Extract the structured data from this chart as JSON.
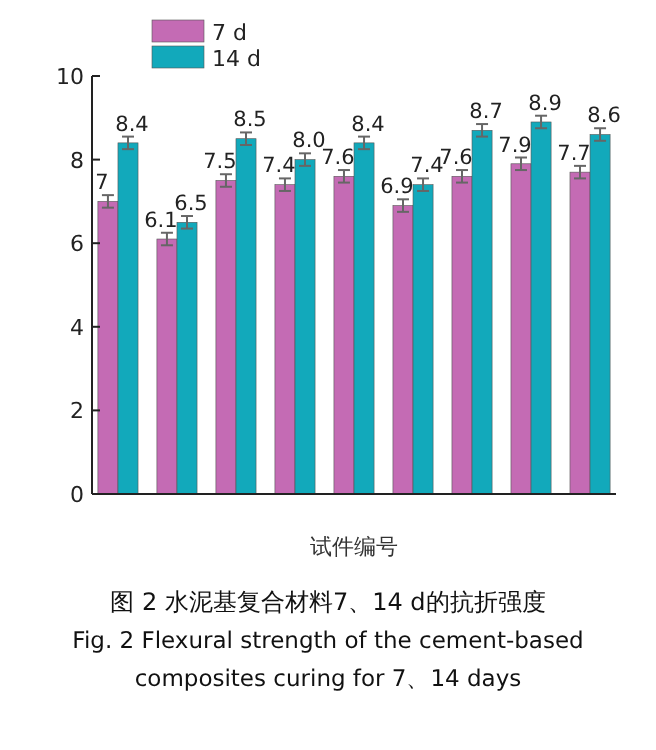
{
  "chart_data": {
    "type": "bar",
    "categories": [
      null,
      null,
      null,
      null,
      null,
      null,
      null,
      null,
      null
    ],
    "series": [
      {
        "name": "7 d",
        "color": "#c46bb4",
        "values": [
          7,
          6.1,
          7.5,
          7.4,
          7.6,
          6.9,
          7.6,
          7.9,
          7.7
        ],
        "value_labels": [
          "7",
          "6.1",
          "7.5",
          "7.4",
          "7.6",
          "6.9",
          "7.6",
          "7.9",
          "7.7"
        ],
        "errors": [
          0.15,
          0.15,
          0.15,
          0.15,
          0.15,
          0.15,
          0.15,
          0.15,
          0.15
        ]
      },
      {
        "name": "14 d",
        "color": "#12a9bb",
        "values": [
          8.4,
          6.5,
          8.5,
          8.0,
          8.4,
          7.4,
          8.7,
          8.9,
          8.6
        ],
        "value_labels": [
          "8.4",
          "6.5",
          "8.5",
          "8.0",
          "8.4",
          "7.4",
          "8.7",
          "8.9",
          "8.6"
        ],
        "errors": [
          0.15,
          0.15,
          0.15,
          0.15,
          0.15,
          0.15,
          0.15,
          0.15,
          0.15
        ]
      }
    ],
    "xlabel": "试件编号",
    "ylim": [
      0,
      10
    ],
    "yticks": [
      0,
      2,
      4,
      6,
      8,
      10
    ],
    "legend": "top left",
    "grid": false,
    "annotations": [
      "图 2 水泥基复合材料7、14 d的抗折强度",
      "Fig. 2 Flexural strength of the cement-based",
      "composites curing for 7、14 days"
    ]
  }
}
